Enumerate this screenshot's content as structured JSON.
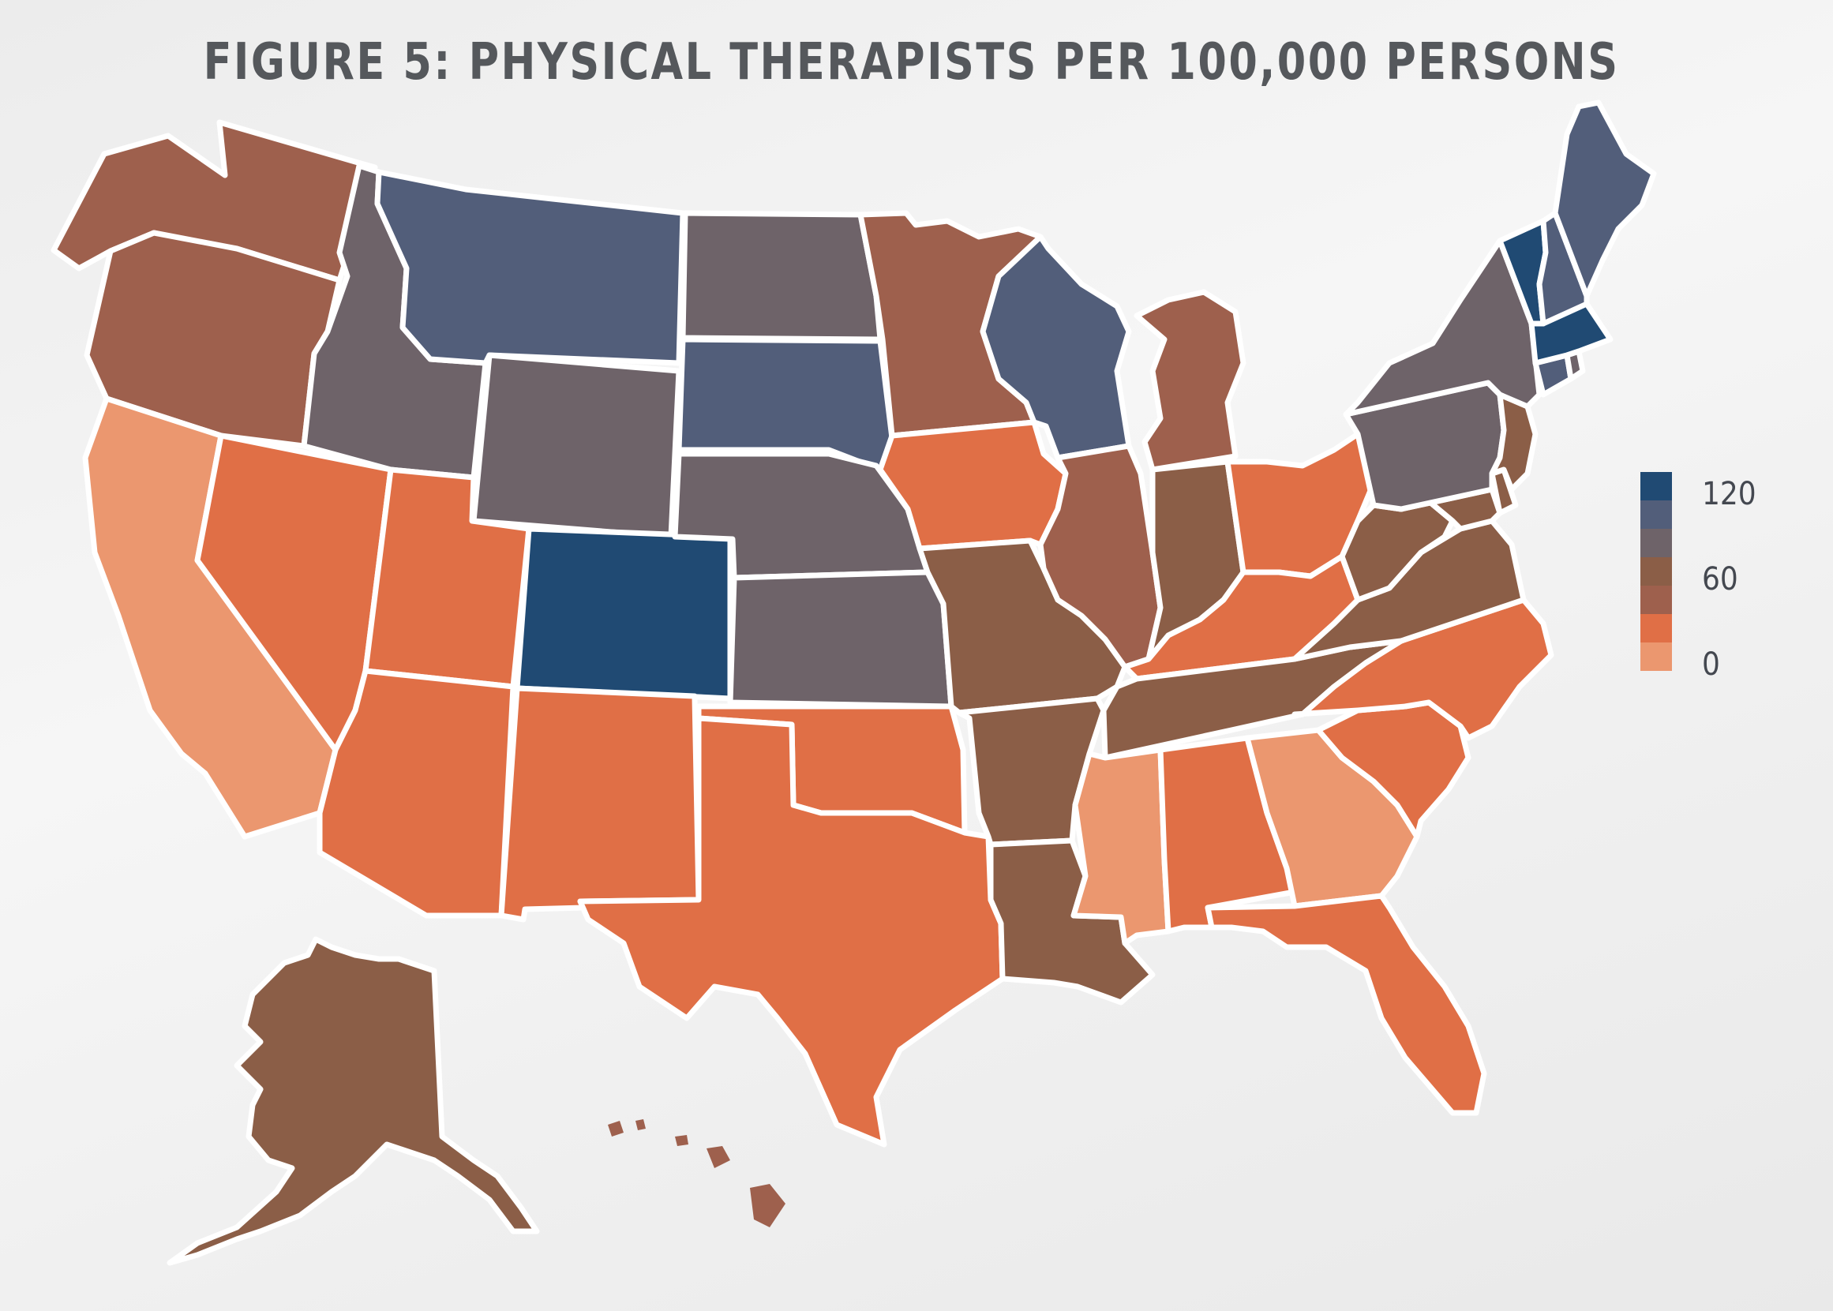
{
  "title": "FIGURE 5: PHYSICAL THERAPISTS PER 100,000 PERSONS",
  "colors": {
    "bin0": "#eb976f",
    "bin1": "#e06f46",
    "bin2": "#9e604d",
    "bin3": "#8b5e47",
    "bin4": "#6e6369",
    "bin5": "#525e7a",
    "bin6": "#204a73"
  },
  "legend": {
    "labels": [
      "120",
      "60",
      "0"
    ]
  },
  "states": [
    {
      "name": "Washington",
      "bin": 2
    },
    {
      "name": "Oregon",
      "bin": 2
    },
    {
      "name": "California",
      "bin": 0
    },
    {
      "name": "Nevada",
      "bin": 1
    },
    {
      "name": "Idaho",
      "bin": 4
    },
    {
      "name": "Montana",
      "bin": 5
    },
    {
      "name": "Wyoming",
      "bin": 4
    },
    {
      "name": "Utah",
      "bin": 1
    },
    {
      "name": "Arizona",
      "bin": 1
    },
    {
      "name": "Colorado",
      "bin": 6
    },
    {
      "name": "New Mexico",
      "bin": 1
    },
    {
      "name": "North Dakota",
      "bin": 4
    },
    {
      "name": "South Dakota",
      "bin": 5
    },
    {
      "name": "Nebraska",
      "bin": 4
    },
    {
      "name": "Kansas",
      "bin": 4
    },
    {
      "name": "Oklahoma",
      "bin": 1
    },
    {
      "name": "Texas",
      "bin": 1
    },
    {
      "name": "Minnesota",
      "bin": 2
    },
    {
      "name": "Iowa",
      "bin": 1
    },
    {
      "name": "Missouri",
      "bin": 3
    },
    {
      "name": "Arkansas",
      "bin": 3
    },
    {
      "name": "Louisiana",
      "bin": 3
    },
    {
      "name": "Wisconsin",
      "bin": 5
    },
    {
      "name": "Illinois",
      "bin": 2
    },
    {
      "name": "Michigan",
      "bin": 2
    },
    {
      "name": "Indiana",
      "bin": 3
    },
    {
      "name": "Ohio",
      "bin": 1
    },
    {
      "name": "Kentucky",
      "bin": 1
    },
    {
      "name": "Tennessee",
      "bin": 3
    },
    {
      "name": "Mississippi",
      "bin": 0
    },
    {
      "name": "Alabama",
      "bin": 1
    },
    {
      "name": "Georgia",
      "bin": 0
    },
    {
      "name": "Florida",
      "bin": 1
    },
    {
      "name": "South Carolina",
      "bin": 1
    },
    {
      "name": "North Carolina",
      "bin": 1
    },
    {
      "name": "Virginia",
      "bin": 3
    },
    {
      "name": "West Virginia",
      "bin": 3
    },
    {
      "name": "Maryland",
      "bin": 3
    },
    {
      "name": "Delaware",
      "bin": 3
    },
    {
      "name": "Pennsylvania",
      "bin": 4
    },
    {
      "name": "New Jersey",
      "bin": 3
    },
    {
      "name": "New York",
      "bin": 4
    },
    {
      "name": "Connecticut",
      "bin": 5
    },
    {
      "name": "Rhode Island",
      "bin": 4
    },
    {
      "name": "Massachusetts",
      "bin": 6
    },
    {
      "name": "Vermont",
      "bin": 6
    },
    {
      "name": "New Hampshire",
      "bin": 5
    },
    {
      "name": "Maine",
      "bin": 5
    },
    {
      "name": "Alaska",
      "bin": 3
    },
    {
      "name": "Hawaii",
      "bin": 2
    }
  ]
}
